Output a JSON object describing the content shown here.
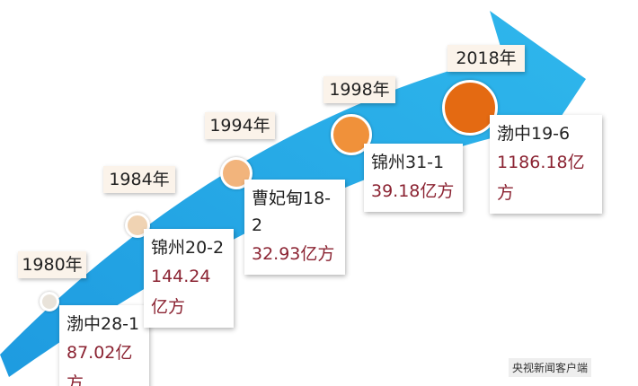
{
  "milestones": [
    {
      "year": "1980年",
      "field": "渤中28-1",
      "reserve": "87.02亿方"
    },
    {
      "year": "1984年",
      "field": "锦州20-2",
      "reserve": "144.24亿方"
    },
    {
      "year": "1994年",
      "field": "曹妃甸18-2",
      "reserve": "32.93亿方"
    },
    {
      "year": "1998年",
      "field": "锦州31-1",
      "reserve": "39.18亿方"
    },
    {
      "year": "2018年",
      "field": "渤中19-6",
      "reserve": "1186.18亿方"
    }
  ],
  "watermark": "央视新闻客户端"
}
